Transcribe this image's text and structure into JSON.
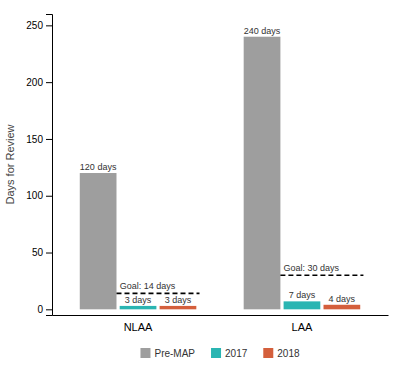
{
  "chart_data": {
    "type": "bar",
    "categories": [
      "NLAA",
      "LAA"
    ],
    "series": [
      {
        "name": "Pre-MAP",
        "color": "#9e9e9e",
        "values": [
          120,
          240
        ],
        "value_labels": [
          "120 days",
          "240 days"
        ]
      },
      {
        "name": "2017",
        "color": "#2ab5b2",
        "values": [
          3,
          7
        ],
        "value_labels": [
          "3 days",
          "7 days"
        ]
      },
      {
        "name": "2018",
        "color": "#d45f3c",
        "values": [
          3,
          4
        ],
        "value_labels": [
          "3 days",
          "4 days"
        ]
      }
    ],
    "goal_lines": [
      {
        "value": 14,
        "label": "Goal: 14 days"
      },
      {
        "value": 30,
        "label": "Goal: 30 days"
      }
    ],
    "ylabel": "Days for Review",
    "ylim": [
      -5,
      260
    ],
    "yticks": [
      0,
      50,
      100,
      150,
      200,
      250
    ],
    "grid": false,
    "legend": "bottom",
    "data_labels": true
  }
}
